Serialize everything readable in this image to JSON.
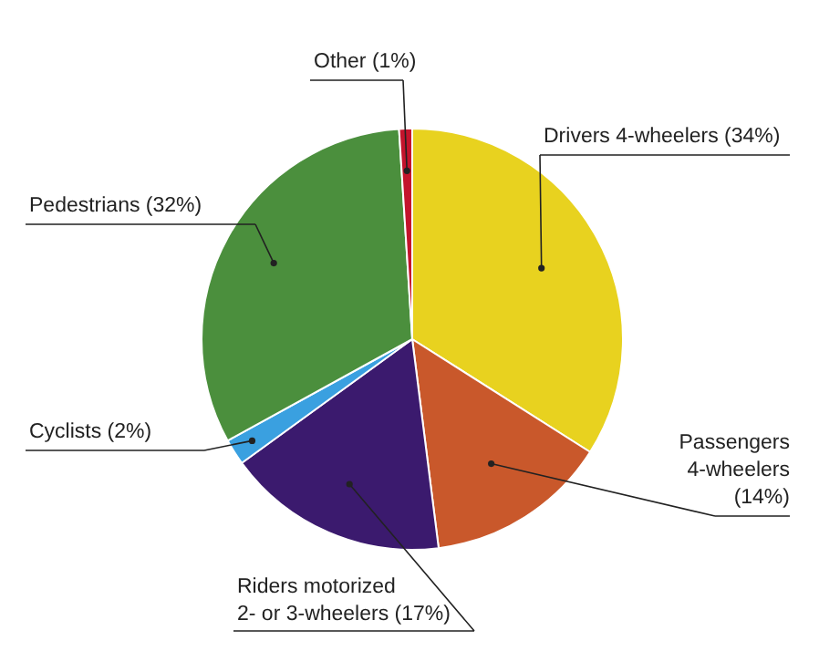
{
  "chart_data": {
    "type": "pie",
    "categories": [
      "Drivers 4-wheelers (34%)",
      "Passengers 4-wheelers (14%)",
      "Riders motorized 2- or 3-wheelers (17%)",
      "Cyclists (2%)",
      "Pedestrians (32%)",
      "Other (1%)"
    ],
    "values": [
      34,
      14,
      17,
      2,
      32,
      1
    ],
    "colors": [
      "#e8d21f",
      "#c9582b",
      "#3b1a6e",
      "#3aa0e0",
      "#4b8f3d",
      "#c3142c"
    ],
    "legend": false
  }
}
